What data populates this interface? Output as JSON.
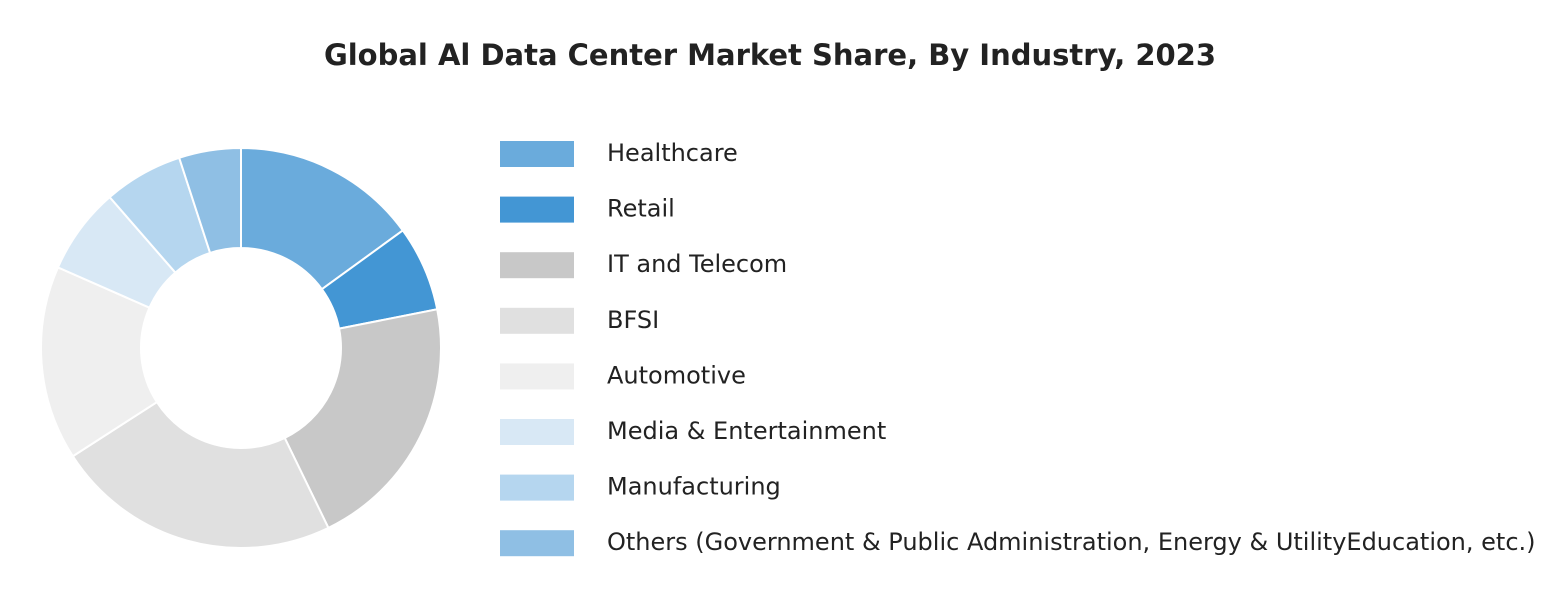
{
  "chart_data": {
    "type": "pie",
    "title": "Global Al Data Center Market Share, By Industry, 2023",
    "categories": [
      "Healthcare",
      "Retail",
      "IT and Telecom",
      "BFSI",
      "Automotive",
      "Media & Entertainment",
      "Manufacturing",
      "Others (Government & Public Administration, Energy & UtilityEducation, etc.)"
    ],
    "values": [
      15,
      6.9,
      20.9,
      23.1,
      15.7,
      7,
      6.4,
      5
    ],
    "colors": [
      "#6aabdc",
      "#4396d4",
      "#c8c8c8",
      "#e0e0e0",
      "#efefef",
      "#d8e8f5",
      "#b5d6ef",
      "#8fbfe4"
    ],
    "donut": true,
    "legend": "right"
  }
}
